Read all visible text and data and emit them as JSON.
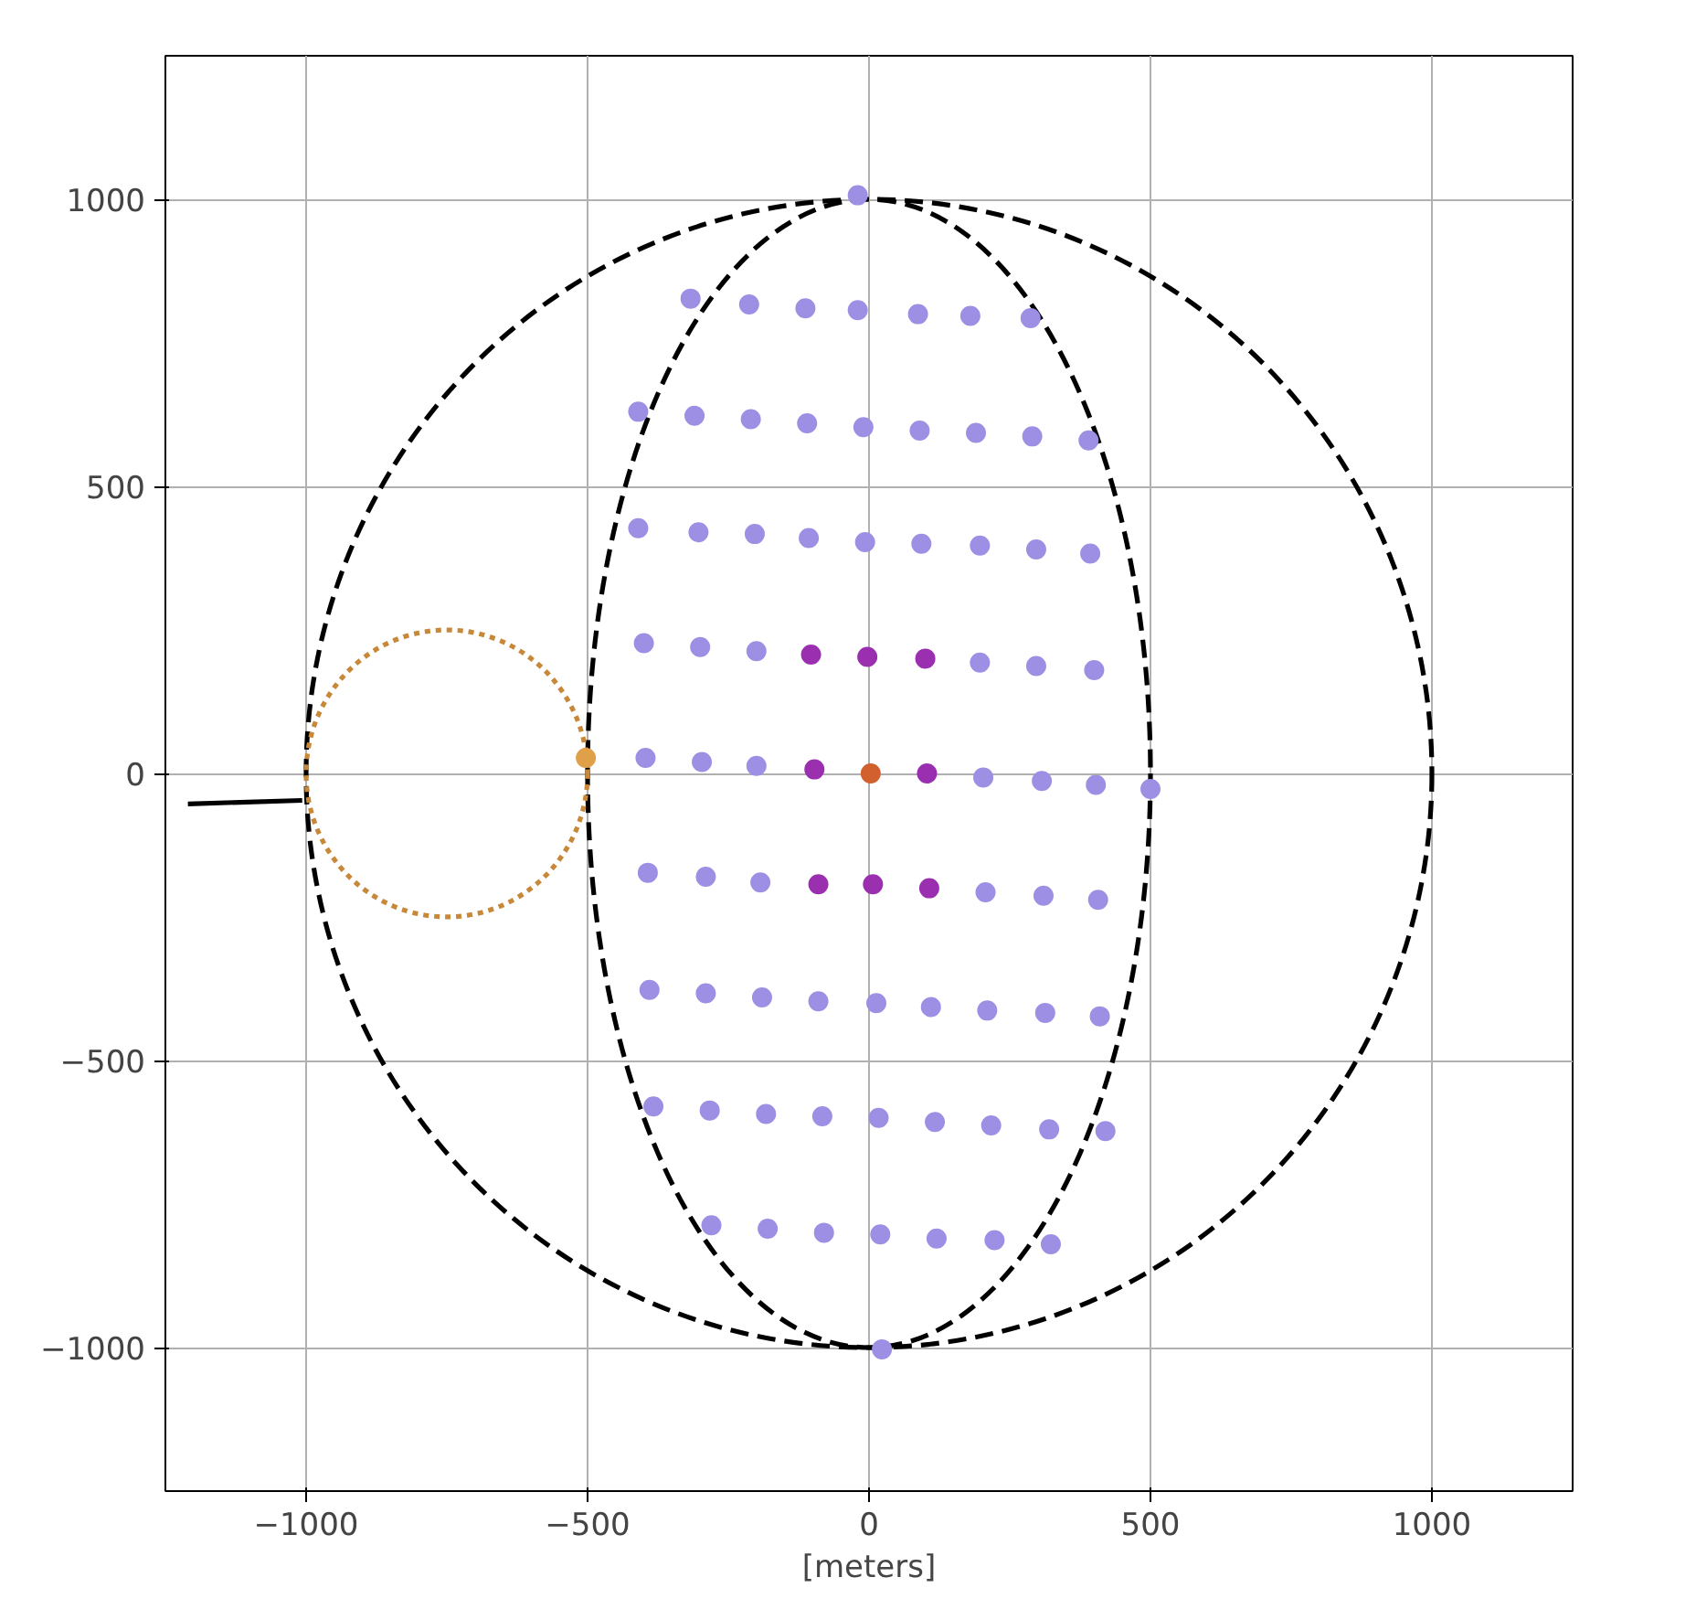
{
  "chart_data": {
    "type": "scatter",
    "xlabel": "[meters]",
    "xlim": [
      -1250,
      1250
    ],
    "ylim": [
      -1250,
      1250
    ],
    "xticks": [
      {
        "value": -1000,
        "label": "−1000"
      },
      {
        "value": -500,
        "label": "−500"
      },
      0,
      500,
      1000
    ],
    "yticks": [
      {
        "value": -1000,
        "label": "−1000"
      },
      {
        "value": -500,
        "label": "−500"
      },
      0,
      500,
      1000
    ],
    "grid": true,
    "marker": "circle",
    "series": [
      {
        "type": "line",
        "line_style": "solid",
        "marker": "none",
        "color": "#000000",
        "x": [
          -1210,
          -1007
        ],
        "values": [
          -53,
          -47
        ]
      },
      {
        "color": "#9d8fe3",
        "x": [
          -20,
          -317,
          -213,
          -113,
          -20,
          87,
          180,
          287,
          -410,
          -310,
          -210,
          -110,
          -10,
          90,
          190,
          290,
          390,
          -410,
          -303,
          -203,
          -107,
          -7,
          93,
          197,
          297,
          393,
          -400,
          -300,
          -200,
          197,
          297,
          400,
          -397,
          -297,
          -200,
          203,
          307,
          403,
          500,
          -393,
          -290,
          -193,
          207,
          310,
          407,
          -390,
          -290,
          -190,
          -90,
          13,
          110,
          210,
          313,
          410,
          -383,
          -283,
          -183,
          -83,
          17,
          117,
          217,
          320,
          420,
          -280,
          -180,
          -80,
          20,
          120,
          223,
          323,
          23
        ],
        "values": [
          1007,
          827,
          817,
          810,
          807,
          800,
          797,
          793,
          630,
          623,
          617,
          610,
          603,
          597,
          593,
          587,
          580,
          427,
          420,
          417,
          410,
          403,
          400,
          397,
          390,
          383,
          227,
          220,
          213,
          193,
          187,
          180,
          27,
          20,
          13,
          -7,
          -13,
          -20,
          -27,
          -173,
          -180,
          -190,
          -207,
          -213,
          -220,
          -377,
          -383,
          -390,
          -397,
          -400,
          -407,
          -413,
          -417,
          -423,
          -580,
          -587,
          -593,
          -597,
          -600,
          -607,
          -613,
          -620,
          -623,
          -787,
          -793,
          -800,
          -803,
          -810,
          -813,
          -820,
          -1003
        ]
      },
      {
        "color": "#9a2fb0",
        "x": [
          -103,
          -3,
          100,
          -97,
          103,
          -90,
          7,
          107
        ],
        "values": [
          207,
          203,
          200,
          7,
          0,
          -193,
          -193,
          -200
        ]
      },
      {
        "color": "#d2602e",
        "x": [
          3
        ],
        "values": [
          0
        ]
      },
      {
        "color": "#e0a04a",
        "x": [
          -503
        ],
        "values": [
          27
        ]
      }
    ]
  }
}
